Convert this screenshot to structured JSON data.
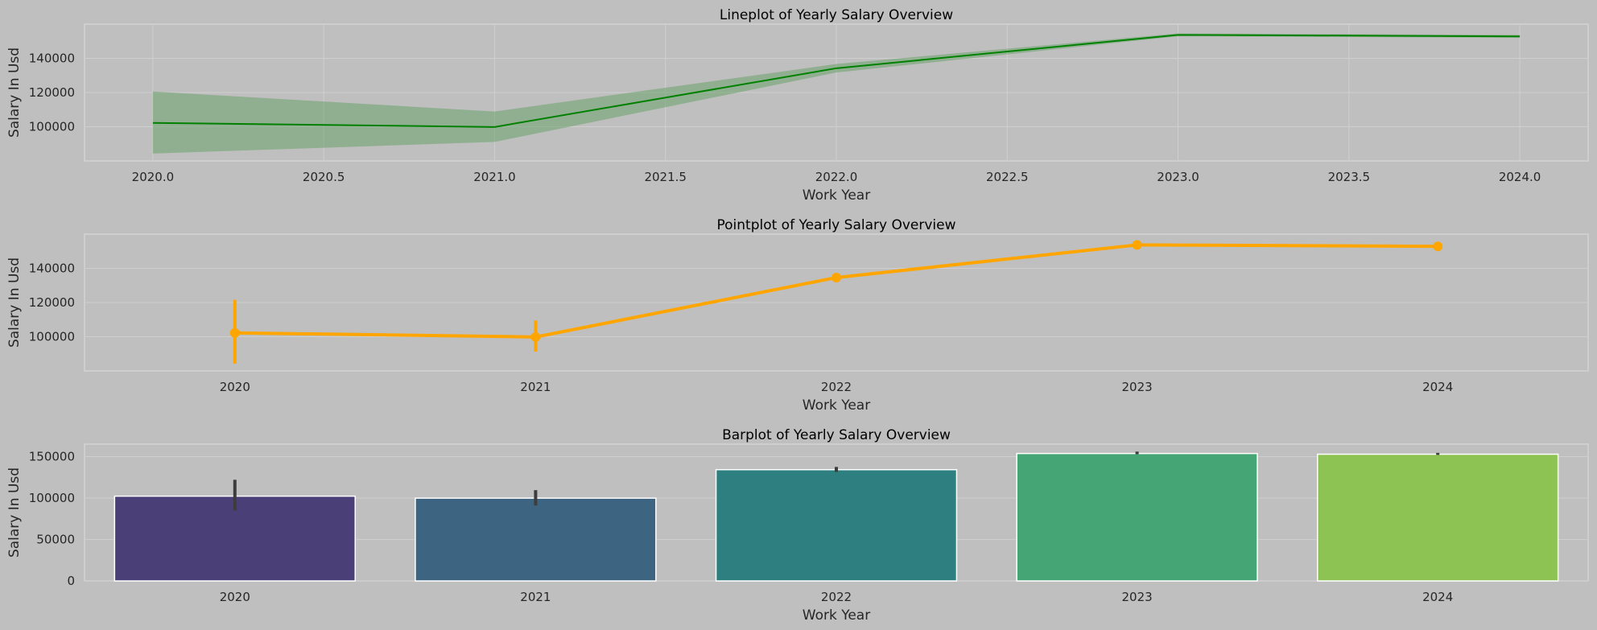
{
  "chart_data": [
    {
      "type": "line",
      "title": "Lineplot of Yearly Salary Overview",
      "xlabel": "Work Year",
      "ylabel": "Salary In Usd",
      "x": [
        2020,
        2021,
        2022,
        2023,
        2024
      ],
      "values": [
        102250,
        99850,
        134200,
        153700,
        152850
      ],
      "ci_low": [
        84300,
        91100,
        131700,
        152900,
        152000
      ],
      "ci_high": [
        120600,
        108900,
        136700,
        154600,
        153700
      ],
      "xlim": [
        2019.8,
        2024.2
      ],
      "ylim": [
        80000,
        160000
      ],
      "xticks": [
        2020.0,
        2020.5,
        2021.0,
        2021.5,
        2022.0,
        2022.5,
        2023.0,
        2023.5,
        2024.0
      ],
      "xtick_labels": [
        "2020.0",
        "2020.5",
        "2021.0",
        "2021.5",
        "2022.0",
        "2022.5",
        "2023.0",
        "2023.5",
        "2024.0"
      ],
      "yticks": [
        100000,
        120000,
        140000
      ],
      "ytick_labels": [
        "100000",
        "120000",
        "140000"
      ],
      "line_color": "#008000",
      "band_color": "#6aa26a",
      "grid": true
    },
    {
      "type": "line",
      "title": "Pointplot of Yearly Salary Overview",
      "xlabel": "Work Year",
      "ylabel": "Salary In Usd",
      "categories": [
        "2020",
        "2021",
        "2022",
        "2023",
        "2024"
      ],
      "values": [
        102250,
        99850,
        134600,
        153700,
        152850
      ],
      "ci_low": [
        84300,
        91300,
        132400,
        152900,
        152000
      ],
      "ci_high": [
        121600,
        109500,
        136700,
        154600,
        153700
      ],
      "ylim": [
        80000,
        160000
      ],
      "yticks": [
        100000,
        120000,
        140000
      ],
      "ytick_labels": [
        "100000",
        "120000",
        "140000"
      ],
      "color": "#ffa500",
      "grid": true
    },
    {
      "type": "bar",
      "title": "Barplot of Yearly Salary Overview",
      "xlabel": "Work Year",
      "ylabel": "Salary In Usd",
      "categories": [
        "2020",
        "2021",
        "2022",
        "2023",
        "2024"
      ],
      "values": [
        102250,
        99850,
        134200,
        153700,
        152850
      ],
      "ci_low": [
        85000,
        91000,
        131500,
        152900,
        152000
      ],
      "ci_high": [
        122000,
        109500,
        137500,
        156000,
        154500
      ],
      "ylim": [
        0,
        165000
      ],
      "yticks": [
        0,
        50000,
        100000,
        150000
      ],
      "ytick_labels": [
        "0",
        "50000",
        "100000",
        "150000"
      ],
      "colors": [
        "#4b3f78",
        "#3d6480",
        "#2d807f",
        "#45a575",
        "#8cc353"
      ],
      "grid": true
    }
  ]
}
